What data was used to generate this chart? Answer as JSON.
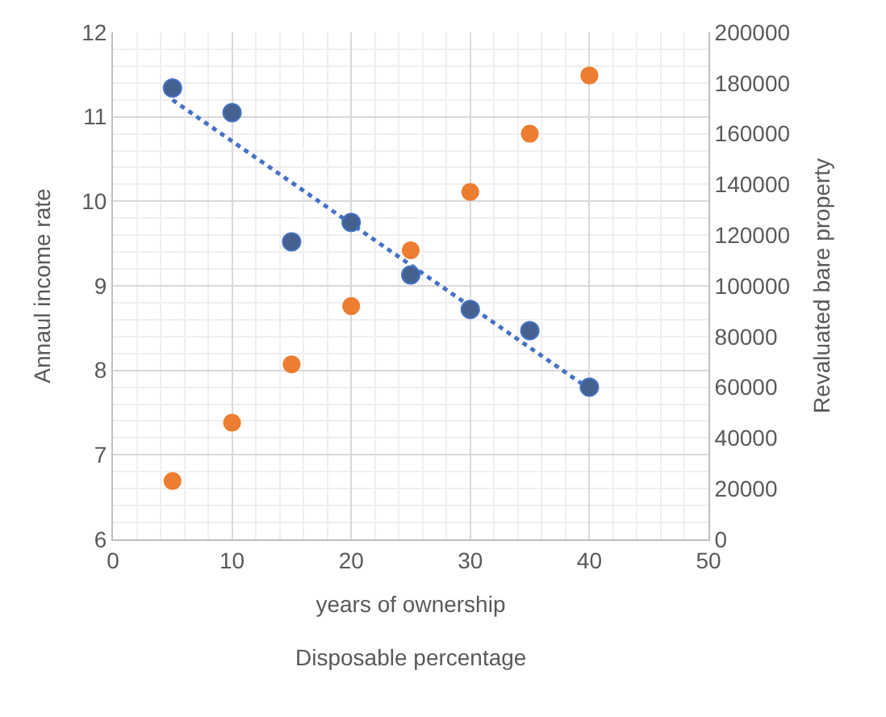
{
  "chart_data": {
    "type": "scatter",
    "xlabel": "years of ownership",
    "ylabel": "Annaul income rate",
    "y2label": "Revaluated bare property",
    "annotations": [
      "Disposable percentage"
    ],
    "xlim": [
      0,
      50
    ],
    "xticks": [
      0,
      10,
      20,
      30,
      40,
      50
    ],
    "ylim": [
      6,
      12
    ],
    "yticks": [
      6,
      7,
      8,
      9,
      10,
      11,
      12
    ],
    "y2lim": [
      0,
      200000
    ],
    "y2ticks": [
      0,
      20000,
      40000,
      60000,
      80000,
      100000,
      120000,
      140000,
      160000,
      180000,
      200000
    ],
    "grid": true,
    "marker": "circle",
    "series": [
      {
        "type": "line",
        "x": [
          5,
          40
        ],
        "values": [
          11.2,
          7.78
        ],
        "color": "#4472c4",
        "line_style": "dotted",
        "marker": "none"
      },
      {
        "x": [
          5,
          10,
          15,
          20,
          25,
          30,
          35,
          40
        ],
        "values": [
          11.34,
          11.05,
          9.52,
          9.75,
          9.13,
          8.72,
          8.47,
          7.8
        ],
        "color": "#44618f"
      },
      {
        "x": [
          5,
          10,
          15,
          20,
          25,
          30,
          35,
          40
        ],
        "values": [
          23000,
          46000,
          69000,
          92000,
          114000,
          137000,
          160000,
          183000
        ],
        "color": "#ed7d31",
        "axis": "y2"
      }
    ]
  }
}
